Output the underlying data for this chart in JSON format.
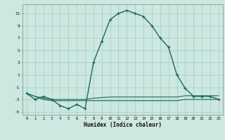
{
  "xlabel": "Humidex (Indice chaleur)",
  "bg_color": "#cce8e0",
  "grid_color": "#aacfc8",
  "line_color": "#1a6b5a",
  "x_values": [
    0,
    1,
    2,
    3,
    4,
    5,
    6,
    7,
    8,
    9,
    10,
    11,
    12,
    13,
    14,
    15,
    16,
    17,
    18,
    19,
    20,
    21,
    22,
    23
  ],
  "y_main": [
    -2,
    -3,
    -2.5,
    -3,
    -4,
    -4.5,
    -3.8,
    -4.5,
    3,
    6.5,
    10,
    11,
    11.5,
    11,
    10.5,
    9,
    7,
    5.5,
    1,
    -1.2,
    -2.5,
    -2.5,
    -2.5,
    -3
  ],
  "y_upper": [
    -2,
    -2.5,
    -2.8,
    -3.0,
    -3.0,
    -3.0,
    -3.0,
    -3.0,
    -2.8,
    -2.7,
    -2.6,
    -2.6,
    -2.6,
    -2.6,
    -2.6,
    -2.6,
    -2.6,
    -2.6,
    -2.6,
    -2.4,
    -2.4,
    -2.4,
    -2.4,
    -2.4
  ],
  "y_lower": [
    -2,
    -2.5,
    -3.0,
    -3.2,
    -3.2,
    -3.2,
    -3.2,
    -3.2,
    -3.2,
    -3.2,
    -3.2,
    -3.2,
    -3.2,
    -3.2,
    -3.2,
    -3.2,
    -3.2,
    -3.2,
    -3.2,
    -3.0,
    -3.0,
    -3.0,
    -3.0,
    -3.0
  ],
  "yticks": [
    -5,
    -3,
    -1,
    1,
    3,
    5,
    7,
    9,
    11
  ],
  "ylim": [
    -5.5,
    12.5
  ],
  "xlim": [
    -0.5,
    23.5
  ],
  "linewidth_main": 1.0,
  "linewidth_sub": 0.8,
  "marker_size": 3.5
}
